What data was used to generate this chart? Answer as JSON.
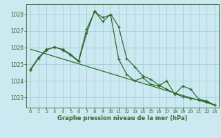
{
  "line1_x": [
    0,
    1,
    2,
    3,
    4,
    5,
    6,
    7,
    8,
    9,
    10,
    11,
    12,
    13,
    14,
    15,
    16,
    17,
    18,
    19,
    20,
    21,
    22,
    23
  ],
  "line1_y": [
    1024.7,
    1025.4,
    1025.9,
    1026.0,
    1025.9,
    1025.6,
    1025.2,
    1027.1,
    1028.15,
    1027.8,
    1027.95,
    1025.3,
    1024.4,
    1024.0,
    1024.2,
    1023.8,
    1023.7,
    1024.0,
    1023.2,
    1023.7,
    1023.5,
    1022.9,
    1022.8,
    1022.55
  ],
  "line2_x": [
    0,
    1,
    2,
    3,
    4,
    5,
    6,
    7,
    8,
    9,
    10,
    11,
    12,
    13,
    14,
    15,
    16,
    17,
    18,
    19,
    20,
    21,
    22,
    23
  ],
  "line2_y": [
    1024.65,
    1025.35,
    1025.85,
    1026.05,
    1025.85,
    1025.55,
    1025.15,
    1026.85,
    1028.2,
    1027.55,
    1028.0,
    1027.25,
    1025.35,
    1024.85,
    1024.3,
    1024.1,
    1023.75,
    1023.5,
    1023.25,
    1023.05,
    1022.95,
    1022.85,
    1022.75,
    1022.55
  ],
  "line3_x": [
    0,
    23
  ],
  "line3_y": [
    1025.9,
    1022.55
  ],
  "line_color": "#2d6b2d",
  "bg_color": "#cce8f0",
  "grid_color": "#99ccd9",
  "xlabel": "Graphe pression niveau de la mer (hPa)",
  "ylim": [
    1022.4,
    1028.6
  ],
  "xlim": [
    -0.5,
    23.5
  ],
  "yticks": [
    1023,
    1024,
    1025,
    1026,
    1027,
    1028
  ],
  "xticks": [
    0,
    1,
    2,
    3,
    4,
    5,
    6,
    7,
    8,
    9,
    10,
    11,
    12,
    13,
    14,
    15,
    16,
    17,
    18,
    19,
    20,
    21,
    22,
    23
  ]
}
